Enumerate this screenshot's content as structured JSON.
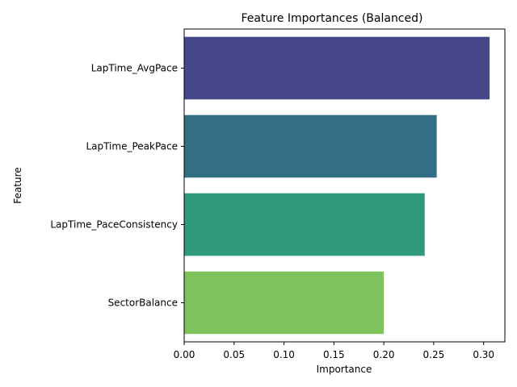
{
  "chart_data": {
    "type": "bar",
    "orientation": "horizontal",
    "title": "Feature Importances (Balanced)",
    "xlabel": "Importance",
    "ylabel": "Feature",
    "categories": [
      "LapTime_AvgPace",
      "LapTime_PeakPace",
      "LapTime_PaceConsistency",
      "SectorBalance"
    ],
    "values": [
      0.306,
      0.253,
      0.241,
      0.2
    ],
    "colors": [
      "#46478a",
      "#336f84",
      "#2f9b7c",
      "#7ec35c"
    ],
    "xlim": [
      0,
      0.3213
    ],
    "xticks": [
      0.0,
      0.05,
      0.1,
      0.15,
      0.2,
      0.25,
      0.3
    ],
    "xtick_labels": [
      "0.00",
      "0.05",
      "0.10",
      "0.15",
      "0.20",
      "0.25",
      "0.30"
    ],
    "grid": false,
    "legend": "none"
  }
}
